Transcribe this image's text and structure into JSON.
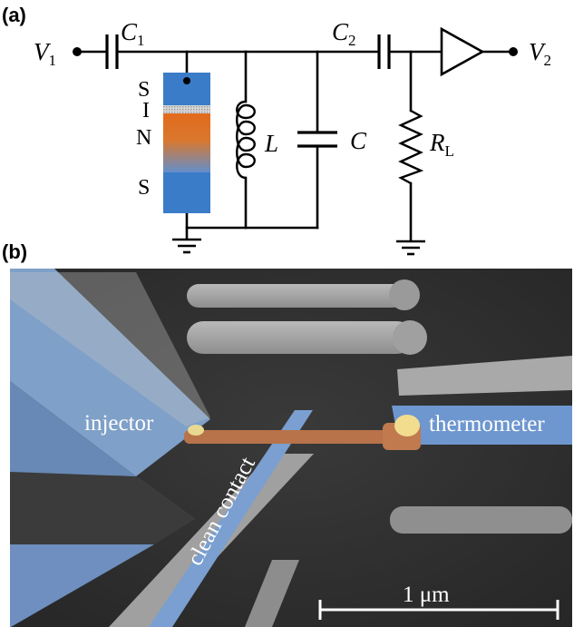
{
  "panel_a": {
    "label": "(a)",
    "nodes": {
      "v1": {
        "sym": "V",
        "sub": "1"
      },
      "v2": {
        "sym": "V",
        "sub": "2"
      },
      "c1": {
        "sym": "C",
        "sub": "1"
      },
      "c2": {
        "sym": "C",
        "sub": "2"
      },
      "l": "L",
      "c": "C",
      "rl": {
        "sym": "R",
        "sub": "L"
      }
    },
    "junction_layers": [
      "S",
      "I",
      "N",
      "S"
    ],
    "colors": {
      "superconductor": "#3a7cc8",
      "normal_metal": "#e07a2a",
      "insulator": "#cfcfcf"
    }
  },
  "panel_b": {
    "label": "(b)",
    "injector_label": "injector",
    "thermometer_label": "thermometer",
    "contact_label": "clean contact",
    "scale_bar_label": "1 μm",
    "colors": {
      "superconductor_overlay": "#6f9fd8",
      "normal_metal_overlay": "#b8734a",
      "contact_overlay": "#e8d890",
      "background": "#2e2e2e"
    }
  }
}
